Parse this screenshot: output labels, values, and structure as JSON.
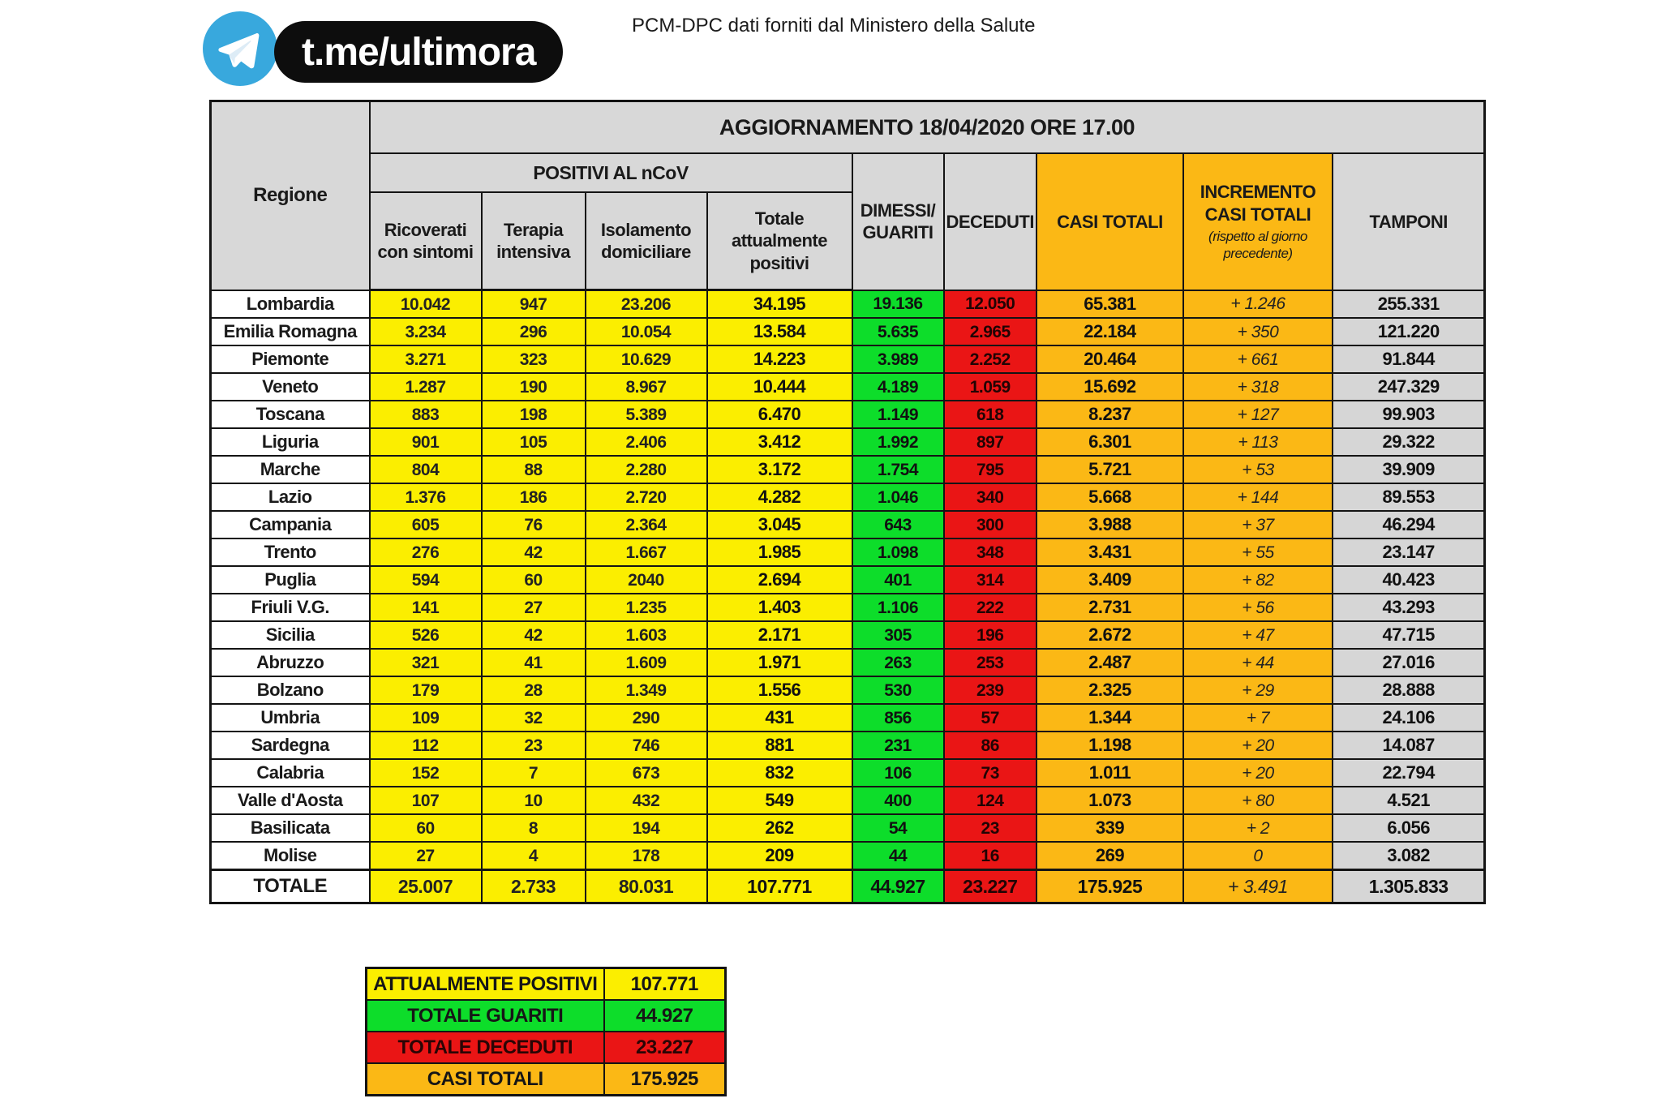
{
  "header": {
    "brand": "t.me/ultimora",
    "source_note": "PCM-DPC dati forniti dal Ministero della Salute",
    "logo_icon": "telegram-paper-plane-icon"
  },
  "colors": {
    "yellow": "#fbee00",
    "green": "#0ddd2a",
    "red": "#ea1515",
    "orange": "#fbb815",
    "grayhead": "#d8d8d8",
    "graycell": "#d6d6d6",
    "line": "#141414",
    "telegram-blue": "#38a8dd",
    "pill-black": "#0d0d0d"
  },
  "table": {
    "title": "AGGIORNAMENTO 18/04/2020 ORE 17.00",
    "headers": {
      "region": "Regione",
      "positivi_group": "POSITIVI AL nCoV",
      "sub_ricoverati": "Ricoverati\ncon sintomi",
      "sub_terapia": "Terapia\nintensiva",
      "sub_isolamento": "Isolamento\ndomiciliare",
      "sub_totale": "Totale\nattualmente\npositivi",
      "dimessi": "DIMESSI/\nGUARITI",
      "deceduti": "DECEDUTI",
      "casi_totali": "CASI TOTALI",
      "incremento_main": "INCREMENTO\nCASI  TOTALI",
      "incremento_note": "(rispetto al giorno\nprecedente)",
      "tamponi": "TAMPONI"
    },
    "rows": [
      [
        "Lombardia",
        "10.042",
        "947",
        "23.206",
        "34.195",
        "19.136",
        "12.050",
        "65.381",
        "+ 1.246",
        "255.331"
      ],
      [
        "Emilia Romagna",
        "3.234",
        "296",
        "10.054",
        "13.584",
        "5.635",
        "2.965",
        "22.184",
        "+ 350",
        "121.220"
      ],
      [
        "Piemonte",
        "3.271",
        "323",
        "10.629",
        "14.223",
        "3.989",
        "2.252",
        "20.464",
        "+ 661",
        "91.844"
      ],
      [
        "Veneto",
        "1.287",
        "190",
        "8.967",
        "10.444",
        "4.189",
        "1.059",
        "15.692",
        "+ 318",
        "247.329"
      ],
      [
        "Toscana",
        "883",
        "198",
        "5.389",
        "6.470",
        "1.149",
        "618",
        "8.237",
        "+ 127",
        "99.903"
      ],
      [
        "Liguria",
        "901",
        "105",
        "2.406",
        "3.412",
        "1.992",
        "897",
        "6.301",
        "+ 113",
        "29.322"
      ],
      [
        "Marche",
        "804",
        "88",
        "2.280",
        "3.172",
        "1.754",
        "795",
        "5.721",
        "+ 53",
        "39.909"
      ],
      [
        "Lazio",
        "1.376",
        "186",
        "2.720",
        "4.282",
        "1.046",
        "340",
        "5.668",
        "+ 144",
        "89.553"
      ],
      [
        "Campania",
        "605",
        "76",
        "2.364",
        "3.045",
        "643",
        "300",
        "3.988",
        "+ 37",
        "46.294"
      ],
      [
        "Trento",
        "276",
        "42",
        "1.667",
        "1.985",
        "1.098",
        "348",
        "3.431",
        "+ 55",
        "23.147"
      ],
      [
        "Puglia",
        "594",
        "60",
        "2040",
        "2.694",
        "401",
        "314",
        "3.409",
        "+ 82",
        "40.423"
      ],
      [
        "Friuli V.G.",
        "141",
        "27",
        "1.235",
        "1.403",
        "1.106",
        "222",
        "2.731",
        "+ 56",
        "43.293"
      ],
      [
        "Sicilia",
        "526",
        "42",
        "1.603",
        "2.171",
        "305",
        "196",
        "2.672",
        "+ 47",
        "47.715"
      ],
      [
        "Abruzzo",
        "321",
        "41",
        "1.609",
        "1.971",
        "263",
        "253",
        "2.487",
        "+ 44",
        "27.016"
      ],
      [
        "Bolzano",
        "179",
        "28",
        "1.349",
        "1.556",
        "530",
        "239",
        "2.325",
        "+ 29",
        "28.888"
      ],
      [
        "Umbria",
        "109",
        "32",
        "290",
        "431",
        "856",
        "57",
        "1.344",
        "+ 7",
        "24.106"
      ],
      [
        "Sardegna",
        "112",
        "23",
        "746",
        "881",
        "231",
        "86",
        "1.198",
        "+ 20",
        "14.087"
      ],
      [
        "Calabria",
        "152",
        "7",
        "673",
        "832",
        "106",
        "73",
        "1.011",
        "+ 20",
        "22.794"
      ],
      [
        "Valle d'Aosta",
        "107",
        "10",
        "432",
        "549",
        "400",
        "124",
        "1.073",
        "+ 80",
        "4.521"
      ],
      [
        "Basilicata",
        "60",
        "8",
        "194",
        "262",
        "54",
        "23",
        "339",
        "+ 2",
        "6.056"
      ],
      [
        "Molise",
        "27",
        "4",
        "178",
        "209",
        "44",
        "16",
        "269",
        "0",
        "3.082"
      ]
    ],
    "total_row": [
      "TOTALE",
      "25.007",
      "2.733",
      "80.031",
      "107.771",
      "44.927",
      "23.227",
      "175.925",
      "+ 3.491",
      "1.305.833"
    ]
  },
  "summary": {
    "rows": [
      {
        "label": "ATTUALMENTE POSITIVI",
        "value": "107.771",
        "color": "yellow"
      },
      {
        "label": "TOTALE GUARITI",
        "value": "44.927",
        "color": "green"
      },
      {
        "label": "TOTALE DECEDUTI",
        "value": "23.227",
        "color": "red"
      },
      {
        "label": "CASI TOTALI",
        "value": "175.925",
        "color": "orange"
      }
    ]
  },
  "chart_data": {
    "type": "table",
    "title": "AGGIORNAMENTO 18/04/2020 ORE 17.00",
    "columns": [
      "Regione",
      "Ricoverati con sintomi",
      "Terapia intensiva",
      "Isolamento domiciliare",
      "Totale attualmente positivi",
      "Dimessi/Guariti",
      "Deceduti",
      "Casi totali",
      "Incremento casi totali (rispetto al giorno precedente)",
      "Tamponi"
    ],
    "rows": [
      [
        "Lombardia",
        10042,
        947,
        23206,
        34195,
        19136,
        12050,
        65381,
        1246,
        255331
      ],
      [
        "Emilia Romagna",
        3234,
        296,
        10054,
        13584,
        5635,
        2965,
        22184,
        350,
        121220
      ],
      [
        "Piemonte",
        3271,
        323,
        10629,
        14223,
        3989,
        2252,
        20464,
        661,
        91844
      ],
      [
        "Veneto",
        1287,
        190,
        8967,
        10444,
        4189,
        1059,
        15692,
        318,
        247329
      ],
      [
        "Toscana",
        883,
        198,
        5389,
        6470,
        1149,
        618,
        8237,
        127,
        99903
      ],
      [
        "Liguria",
        901,
        105,
        2406,
        3412,
        1992,
        897,
        6301,
        113,
        29322
      ],
      [
        "Marche",
        804,
        88,
        2280,
        3172,
        1754,
        795,
        5721,
        53,
        39909
      ],
      [
        "Lazio",
        1376,
        186,
        2720,
        4282,
        1046,
        340,
        5668,
        144,
        89553
      ],
      [
        "Campania",
        605,
        76,
        2364,
        3045,
        643,
        300,
        3988,
        37,
        46294
      ],
      [
        "Trento",
        276,
        42,
        1667,
        1985,
        1098,
        348,
        3431,
        55,
        23147
      ],
      [
        "Puglia",
        594,
        60,
        2040,
        2694,
        401,
        314,
        3409,
        82,
        40423
      ],
      [
        "Friuli V.G.",
        141,
        27,
        1235,
        1403,
        1106,
        222,
        2731,
        56,
        43293
      ],
      [
        "Sicilia",
        526,
        42,
        1603,
        2171,
        305,
        196,
        2672,
        47,
        47715
      ],
      [
        "Abruzzo",
        321,
        41,
        1609,
        1971,
        263,
        253,
        2487,
        44,
        27016
      ],
      [
        "Bolzano",
        179,
        28,
        1349,
        1556,
        530,
        239,
        2325,
        29,
        28888
      ],
      [
        "Umbria",
        109,
        32,
        290,
        431,
        856,
        57,
        1344,
        7,
        24106
      ],
      [
        "Sardegna",
        112,
        23,
        746,
        881,
        231,
        86,
        1198,
        20,
        14087
      ],
      [
        "Calabria",
        152,
        7,
        673,
        832,
        106,
        73,
        1011,
        20,
        22794
      ],
      [
        "Valle d'Aosta",
        107,
        10,
        432,
        549,
        400,
        124,
        1073,
        80,
        4521
      ],
      [
        "Basilicata",
        60,
        8,
        194,
        262,
        54,
        23,
        339,
        2,
        6056
      ],
      [
        "Molise",
        27,
        4,
        178,
        209,
        44,
        16,
        269,
        0,
        3082
      ],
      [
        "TOTALE",
        25007,
        2733,
        80031,
        107771,
        44927,
        23227,
        175925,
        3491,
        1305833
      ]
    ],
    "summary": {
      "attualmente_positivi": 107771,
      "totale_guariti": 44927,
      "totale_deceduti": 23227,
      "casi_totali": 175925
    }
  }
}
